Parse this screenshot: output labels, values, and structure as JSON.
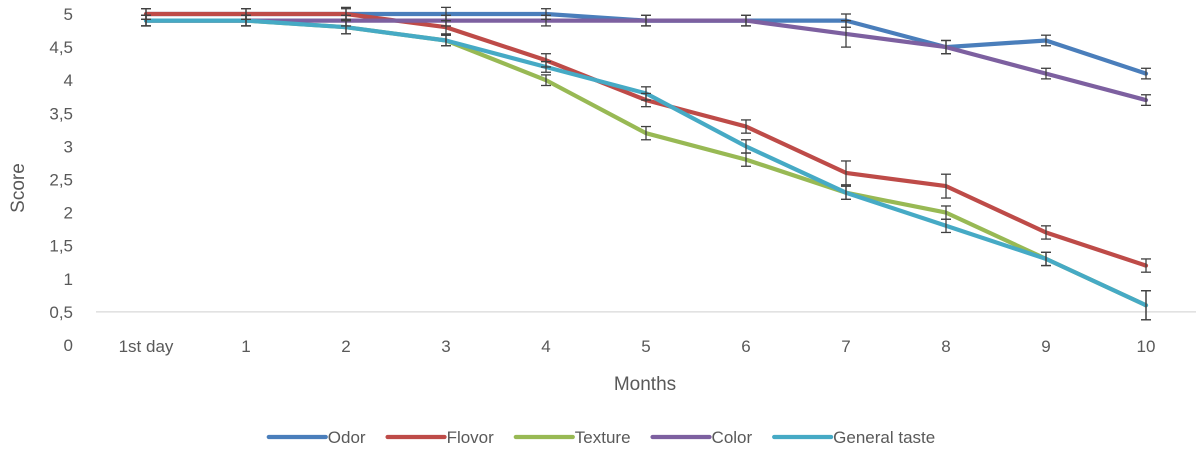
{
  "chart_data": {
    "type": "line",
    "title": "",
    "xlabel": "Months",
    "ylabel": "Score",
    "categories": [
      "1st day",
      "1",
      "2",
      "3",
      "4",
      "5",
      "6",
      "7",
      "8",
      "9",
      "10"
    ],
    "y_tick_labels": [
      "0",
      "0,5",
      "1",
      "1,5",
      "2",
      "2,5",
      "3",
      "3,5",
      "4",
      "4,5",
      "5"
    ],
    "y_ticks": [
      0,
      0.5,
      1,
      1.5,
      2,
      2.5,
      3,
      3.5,
      4,
      4.5,
      5
    ],
    "ylim": [
      0,
      5
    ],
    "grid": false,
    "legend_position": "bottom",
    "error_bars": true,
    "series": [
      {
        "name": "Odor",
        "color": "#4a7ebb",
        "values": [
          5.0,
          5.0,
          5.0,
          5.0,
          5.0,
          4.9,
          4.9,
          4.9,
          4.5,
          4.6,
          4.1
        ],
        "errors": [
          0.08,
          0.08,
          0.08,
          0.1,
          0.08,
          0.08,
          0.08,
          0.1,
          0.1,
          0.08,
          0.08
        ]
      },
      {
        "name": "Flovor",
        "color": "#be4b48",
        "values": [
          5.0,
          5.0,
          5.0,
          4.8,
          4.3,
          3.7,
          3.3,
          2.6,
          2.4,
          1.7,
          1.2
        ],
        "errors": [
          0.08,
          0.08,
          0.1,
          0.1,
          0.1,
          0.1,
          0.1,
          0.18,
          0.18,
          0.1,
          0.1
        ]
      },
      {
        "name": "Texture",
        "color": "#98b954",
        "values": [
          4.9,
          4.9,
          4.8,
          4.6,
          4.0,
          3.2,
          2.8,
          2.3,
          2.0,
          1.3,
          0.6
        ],
        "errors": [
          0.08,
          0.08,
          0.1,
          0.08,
          0.08,
          0.1,
          0.1,
          0.1,
          0.1,
          0.1,
          0.22
        ]
      },
      {
        "name": "Color",
        "color": "#7d60a0",
        "values": [
          4.9,
          4.9,
          4.9,
          4.9,
          4.9,
          4.9,
          4.9,
          4.7,
          4.5,
          4.1,
          3.7
        ],
        "errors": [
          0.08,
          0.08,
          0.08,
          0.08,
          0.08,
          0.08,
          0.08,
          0.2,
          0.1,
          0.08,
          0.08
        ]
      },
      {
        "name": "General taste",
        "color": "#46aac5",
        "values": [
          4.9,
          4.9,
          4.8,
          4.6,
          4.2,
          3.8,
          3.0,
          2.3,
          1.8,
          1.3,
          0.6
        ],
        "errors": [
          0.08,
          0.08,
          0.1,
          0.08,
          0.08,
          0.1,
          0.1,
          0.1,
          0.1,
          0.1,
          0.22
        ]
      }
    ]
  }
}
